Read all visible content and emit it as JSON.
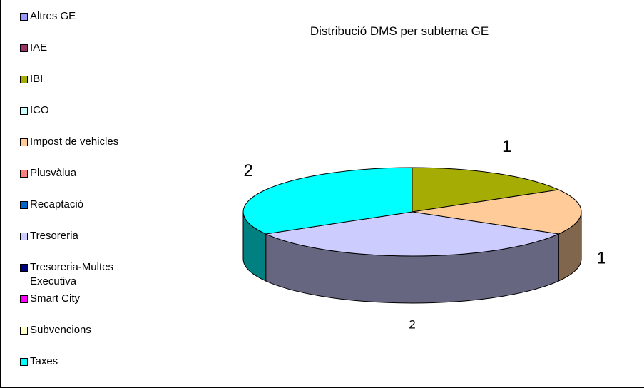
{
  "chart_data": {
    "type": "pie3d",
    "title": "Distribució DMS per subtema GE",
    "categories": [
      "Altres GE",
      "IAE",
      "IBI",
      "ICO",
      "Impost de vehicles",
      "Plusvàlua",
      "Recaptació",
      "Tresoreria",
      "Tresoreria-Multes Executiva",
      "Smart City",
      "Subvencions",
      "Taxes"
    ],
    "values": [
      0,
      0,
      1,
      0,
      1,
      0,
      0,
      2,
      0,
      0,
      0,
      2
    ],
    "colors": [
      "#9999ff",
      "#993366",
      "#a5ac04",
      "#ccffff",
      "#ffcc99",
      "#ff8080",
      "#0066cc",
      "#ccccff",
      "#000080",
      "#ff00ff",
      "#ffffcc",
      "#00ffff"
    ],
    "legend": "left"
  }
}
